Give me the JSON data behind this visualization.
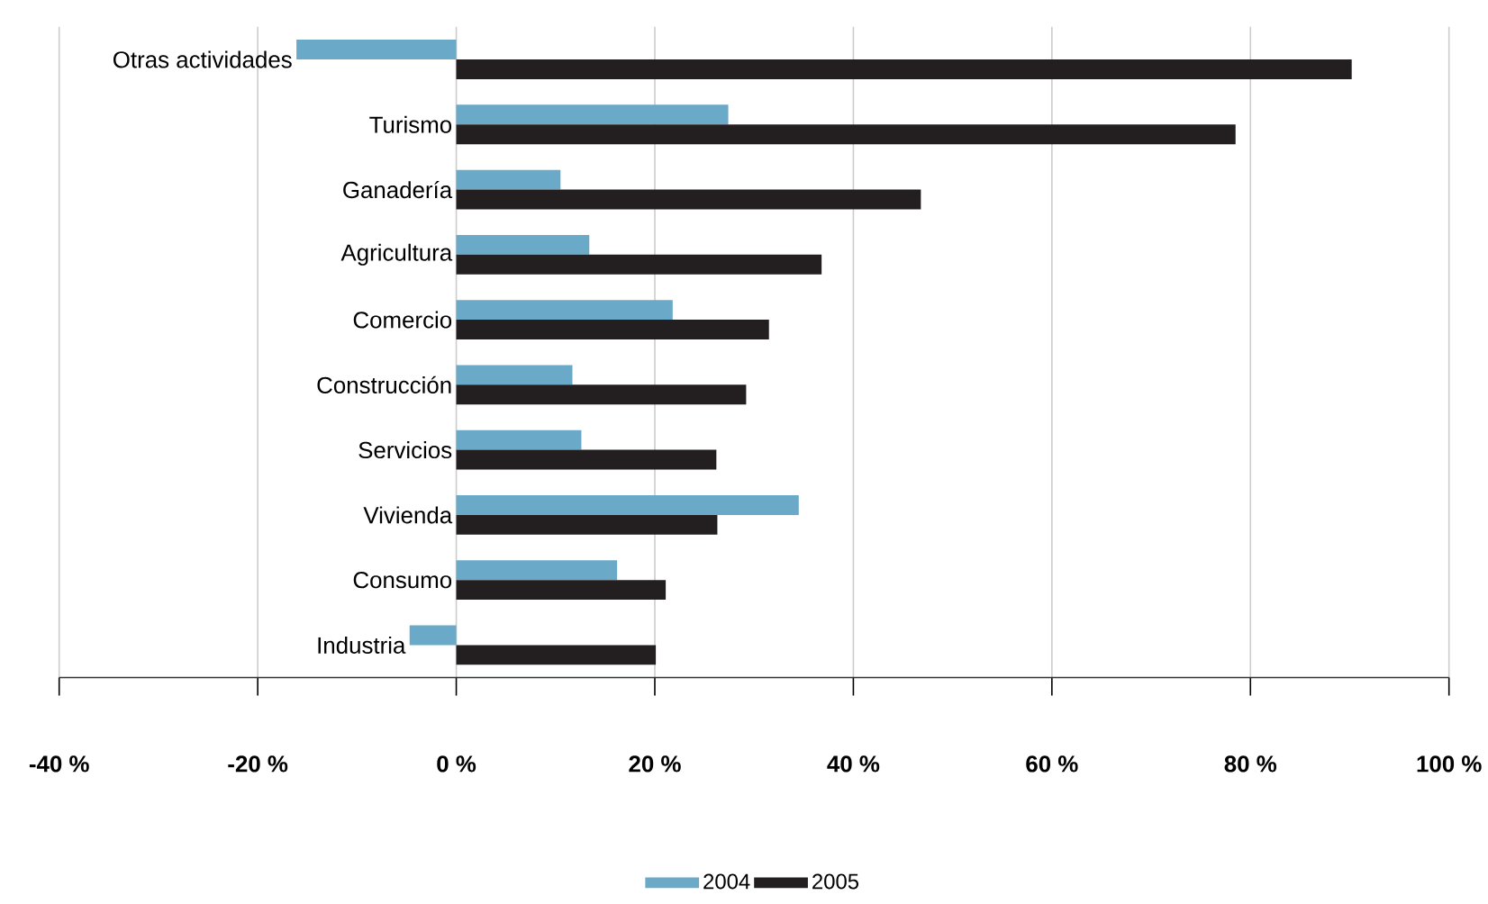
{
  "chart_data": {
    "type": "bar",
    "orientation": "horizontal",
    "categories": [
      "Otras actividades",
      "Turismo",
      "Ganadería",
      "Agricultura",
      "Comercio",
      "Construcción",
      "Servicios",
      "Vivienda",
      "Consumo",
      "Industria"
    ],
    "series": [
      {
        "name": "2004",
        "color": "#6aaac8",
        "values": [
          -16.1,
          27.4,
          10.5,
          13.4,
          21.8,
          11.7,
          12.6,
          34.5,
          16.2,
          -4.7
        ]
      },
      {
        "name": "2005",
        "color": "#231f20",
        "values": [
          90.2,
          78.5,
          46.8,
          36.8,
          31.5,
          29.2,
          26.2,
          26.3,
          21.1,
          20.1
        ]
      }
    ],
    "xlim": [
      -40,
      100
    ],
    "xticks": [
      {
        "value": -40,
        "label": "-40 %"
      },
      {
        "value": -20,
        "label": "-20 %"
      },
      {
        "value": 0,
        "label": "0 %"
      },
      {
        "value": 20,
        "label": "20 %"
      },
      {
        "value": 40,
        "label": "40 %"
      },
      {
        "value": 60,
        "label": "60 %"
      },
      {
        "value": 80,
        "label": "80 %"
      },
      {
        "value": 100,
        "label": "100 %"
      }
    ],
    "grid": "x",
    "legend": "bottom"
  }
}
